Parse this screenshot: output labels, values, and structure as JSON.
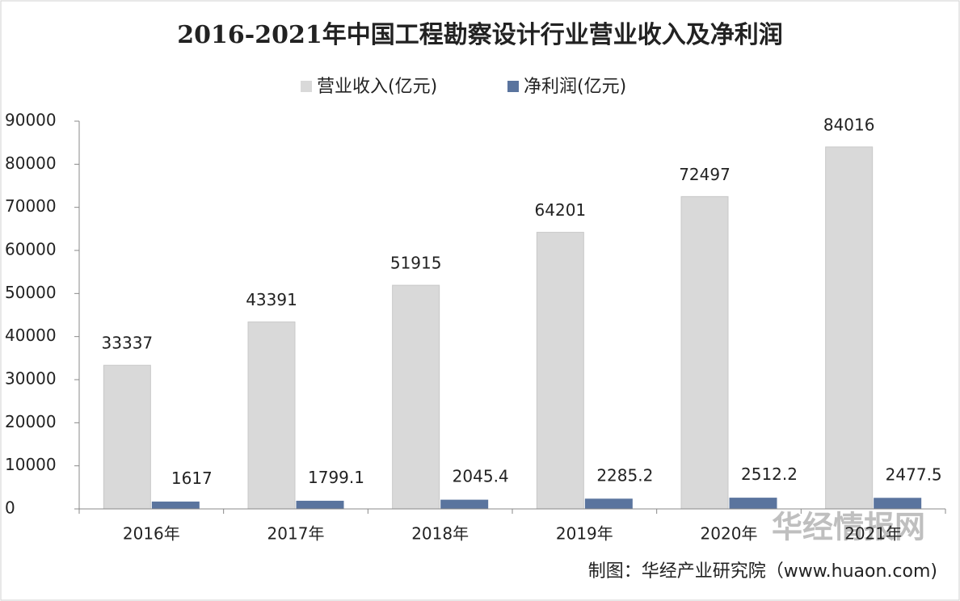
{
  "chart_data": {
    "type": "bar",
    "title": "2016-2021年中国工程勘察设计行业营业收入及净利润",
    "categories": [
      "2016年",
      "2017年",
      "2018年",
      "2019年",
      "2020年",
      "2021年"
    ],
    "series": [
      {
        "name": "营业收入(亿元)",
        "color": "#d9d9d9",
        "values": [
          33337,
          43391,
          51915,
          64201,
          72497,
          84016
        ]
      },
      {
        "name": "净利润(亿元)",
        "color": "#5a749e",
        "values": [
          1617,
          1799.1,
          2045.4,
          2285.2,
          2512.2,
          2477.5
        ]
      }
    ],
    "ylim": [
      0,
      90000
    ],
    "yticks": [
      0,
      10000,
      20000,
      30000,
      40000,
      50000,
      60000,
      70000,
      80000,
      90000
    ],
    "grid": false,
    "legend": "top",
    "source": "制图：华经产业研究院（www.huaon.com)",
    "watermark": "华经情报网"
  }
}
